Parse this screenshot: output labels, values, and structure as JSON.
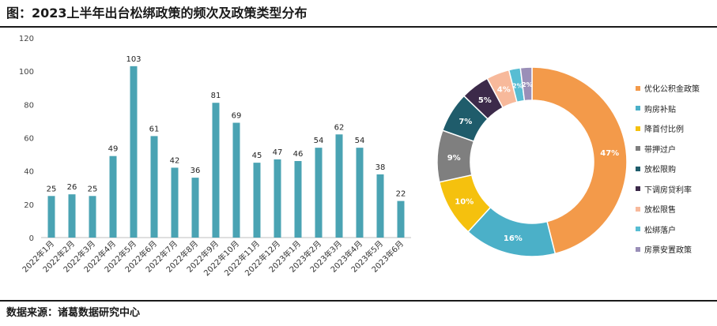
{
  "header": {
    "title": "图：2023上半年出台松绑政策的频次及政策类型分布"
  },
  "footer": {
    "source": "数据来源：诸葛数据研究中心"
  },
  "chart_data": [
    {
      "type": "bar",
      "categories": [
        "2022年1月",
        "2022年2月",
        "2022年3月",
        "2022年4月",
        "2022年5月",
        "2022年6月",
        "2022年7月",
        "2022年8月",
        "2022年9月",
        "2022年10月",
        "2022年11月",
        "2022年12月",
        "2023年1月",
        "2023年2月",
        "2023年3月",
        "2023年4月",
        "2023年5月",
        "2023年6月"
      ],
      "values": [
        25,
        26,
        25,
        49,
        103,
        61,
        42,
        36,
        81,
        69,
        45,
        47,
        46,
        54,
        62,
        54,
        38,
        22
      ],
      "ylim": [
        0,
        120
      ],
      "yticks": [
        0,
        20,
        40,
        60,
        80,
        100,
        120
      ],
      "color": "#4aa3b3",
      "grid": false,
      "data_labels": true
    },
    {
      "type": "pie",
      "donut": true,
      "legend_position": "right",
      "slices": [
        {
          "label": "优化公积金政策",
          "value": 47,
          "text": "47%",
          "color": "#f39a4a"
        },
        {
          "label": "购房补贴",
          "value": 16,
          "text": "16%",
          "color": "#4bb0c8"
        },
        {
          "label": "降首付比例",
          "value": 10,
          "text": "10%",
          "color": "#f5c10e"
        },
        {
          "label": "带押过户",
          "value": 9,
          "text": "9%",
          "color": "#7f7f7f"
        },
        {
          "label": "放松限购",
          "value": 7,
          "text": "7%",
          "color": "#1f5c6b"
        },
        {
          "label": "下调房贷利率",
          "value": 5,
          "text": "5%",
          "color": "#3c2a4a"
        },
        {
          "label": "放松限售",
          "value": 4,
          "text": "4%",
          "color": "#f7b99b"
        },
        {
          "label": "松绑落户",
          "value": 2,
          "text": "2%",
          "color": "#58bdd3"
        },
        {
          "label": "房票安置政策",
          "value": 2,
          "text": "2%",
          "color": "#9a8fb8"
        }
      ]
    }
  ]
}
